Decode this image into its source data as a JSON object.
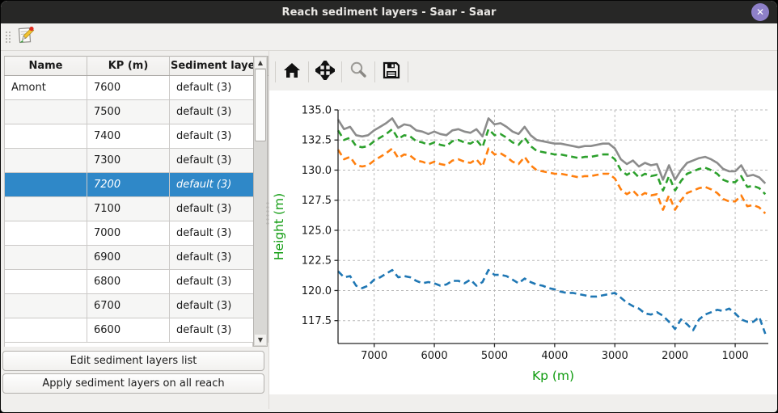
{
  "window": {
    "title": "Reach sediment layers - Saar - Saar",
    "close_glyph": "✕"
  },
  "main_toolbar": {
    "icons": [
      "edit-sediment-layers-icon"
    ]
  },
  "table": {
    "columns": [
      "Name",
      "KP (m)",
      "Sediment layers"
    ],
    "rows": [
      {
        "name": "Amont",
        "kp": "7600",
        "layers": "default (3)"
      },
      {
        "name": "",
        "kp": "7500",
        "layers": "default (3)"
      },
      {
        "name": "",
        "kp": "7400",
        "layers": "default (3)"
      },
      {
        "name": "",
        "kp": "7300",
        "layers": "default (3)"
      },
      {
        "name": "",
        "kp": "7200",
        "layers": "default (3)"
      },
      {
        "name": "",
        "kp": "7100",
        "layers": "default (3)"
      },
      {
        "name": "",
        "kp": "7000",
        "layers": "default (3)"
      },
      {
        "name": "",
        "kp": "6900",
        "layers": "default (3)"
      },
      {
        "name": "",
        "kp": "6800",
        "layers": "default (3)"
      },
      {
        "name": "",
        "kp": "6700",
        "layers": "default (3)"
      },
      {
        "name": "",
        "kp": "6600",
        "layers": "default (3)"
      }
    ],
    "selected_index": 4,
    "selected_color": "#2f88c8"
  },
  "buttons": {
    "edit_list": "Edit sediment layers list",
    "apply_all": "Apply sediment layers on all reach"
  },
  "nav_toolbar": {
    "icons": [
      "home-icon",
      "pan-icon",
      "zoom-rect-icon",
      "save-icon"
    ]
  },
  "chart_data": {
    "type": "line",
    "title": "",
    "xlabel": "Kp (m)",
    "ylabel": "Height (m)",
    "axis_label_color": "#0f9b0f",
    "xlim": [
      7600,
      450
    ],
    "ylim": [
      115.6,
      135.0
    ],
    "x_reversed": true,
    "grid": true,
    "x_ticks": [
      7000,
      6000,
      5000,
      4000,
      3000,
      2000,
      1000
    ],
    "y_ticks": [
      135.0,
      132.5,
      130.0,
      127.5,
      125.0,
      122.5,
      120.0,
      117.5
    ],
    "x": [
      7600,
      7500,
      7400,
      7300,
      7200,
      7100,
      7000,
      6900,
      6800,
      6700,
      6600,
      6500,
      6400,
      6300,
      6200,
      6100,
      6000,
      5900,
      5800,
      5700,
      5600,
      5500,
      5400,
      5300,
      5200,
      5100,
      5000,
      4900,
      4800,
      4700,
      4600,
      4500,
      4400,
      4300,
      4200,
      4100,
      4000,
      3900,
      3800,
      3700,
      3600,
      3500,
      3400,
      3300,
      3200,
      3100,
      3000,
      2900,
      2800,
      2700,
      2600,
      2500,
      2400,
      2300,
      2200,
      2100,
      2000,
      1900,
      1800,
      1700,
      1600,
      1500,
      1400,
      1300,
      1200,
      1100,
      1000,
      900,
      800,
      700,
      600,
      500
    ],
    "series": [
      {
        "name": "blue-dashed-bottom",
        "color": "#1f77b4",
        "style": "dashed",
        "values": [
          121.6,
          121.1,
          121.2,
          120.4,
          120.2,
          120.4,
          120.9,
          121.1,
          121.4,
          121.7,
          121.1,
          121.2,
          121.1,
          120.8,
          120.6,
          120.7,
          120.6,
          120.4,
          120.5,
          120.8,
          120.8,
          120.6,
          120.9,
          120.4,
          120.7,
          121.7,
          121.3,
          121.3,
          121.2,
          120.9,
          120.6,
          121.0,
          120.7,
          120.5,
          120.4,
          120.2,
          120.1,
          119.9,
          119.8,
          119.8,
          119.7,
          119.6,
          119.5,
          119.5,
          119.6,
          119.7,
          119.8,
          119.4,
          119.0,
          118.7,
          118.5,
          118.1,
          118.0,
          118.2,
          117.9,
          117.4,
          116.8,
          117.6,
          117.2,
          116.7,
          117.6,
          118.0,
          118.2,
          118.4,
          118.3,
          118.5,
          118.1,
          117.6,
          117.4,
          117.4,
          117.8,
          116.4
        ]
      },
      {
        "name": "orange-dashed",
        "color": "#ff7f0e",
        "style": "dashed",
        "values": [
          131.7,
          130.9,
          131.1,
          130.4,
          130.3,
          130.4,
          130.8,
          131.1,
          131.4,
          131.8,
          131.0,
          131.3,
          131.2,
          130.8,
          130.7,
          130.5,
          130.7,
          130.5,
          130.4,
          130.8,
          130.9,
          130.7,
          130.6,
          130.9,
          130.3,
          131.8,
          131.3,
          131.4,
          131.1,
          130.7,
          130.5,
          131.1,
          130.4,
          130.0,
          129.9,
          129.8,
          129.7,
          129.7,
          129.6,
          129.5,
          129.4,
          129.5,
          129.5,
          129.6,
          129.7,
          129.7,
          129.3,
          128.4,
          128.0,
          128.3,
          127.8,
          128.1,
          127.9,
          128.0,
          126.7,
          127.9,
          126.7,
          127.5,
          128.1,
          128.3,
          128.5,
          128.6,
          128.4,
          128.1,
          127.6,
          127.4,
          127.4,
          127.9,
          127.0,
          127.1,
          126.9,
          126.4
        ]
      },
      {
        "name": "green-dashed",
        "color": "#2ca02c",
        "style": "dashed",
        "values": [
          133.3,
          132.5,
          132.7,
          132.0,
          131.9,
          132.0,
          132.4,
          132.7,
          133.0,
          133.4,
          132.6,
          132.9,
          132.8,
          132.4,
          132.3,
          132.1,
          132.3,
          132.1,
          132.0,
          132.4,
          132.5,
          132.3,
          132.2,
          132.5,
          131.9,
          133.4,
          132.9,
          133.0,
          132.7,
          132.3,
          132.1,
          132.7,
          132.0,
          131.6,
          131.5,
          131.4,
          131.3,
          131.3,
          131.2,
          131.1,
          131.0,
          131.1,
          131.1,
          131.2,
          131.3,
          131.3,
          130.9,
          130.0,
          129.6,
          129.9,
          129.4,
          129.7,
          129.5,
          129.6,
          128.3,
          129.5,
          128.3,
          129.1,
          129.7,
          129.9,
          130.1,
          130.2,
          130.0,
          129.7,
          129.2,
          129.0,
          129.0,
          129.5,
          128.6,
          128.7,
          128.5,
          128.0
        ]
      },
      {
        "name": "gray-solid-top",
        "color": "#8c8c8c",
        "style": "solid",
        "values": [
          134.2,
          133.4,
          133.6,
          132.9,
          132.8,
          132.9,
          133.3,
          133.6,
          133.9,
          134.3,
          133.5,
          133.8,
          133.7,
          133.3,
          133.2,
          133.0,
          133.2,
          133.0,
          132.9,
          133.3,
          133.4,
          133.2,
          133.1,
          133.4,
          132.8,
          134.3,
          133.8,
          133.9,
          133.6,
          133.2,
          133.0,
          133.6,
          132.9,
          132.5,
          132.4,
          132.3,
          132.2,
          132.2,
          132.1,
          132.0,
          131.9,
          132.0,
          132.0,
          132.1,
          132.2,
          132.2,
          131.8,
          130.9,
          130.5,
          130.8,
          130.3,
          130.6,
          130.4,
          130.5,
          129.2,
          130.4,
          129.2,
          130.0,
          130.6,
          130.8,
          131.0,
          131.1,
          130.9,
          130.6,
          130.1,
          129.9,
          129.9,
          130.4,
          129.5,
          129.6,
          129.4,
          128.9
        ]
      }
    ]
  }
}
